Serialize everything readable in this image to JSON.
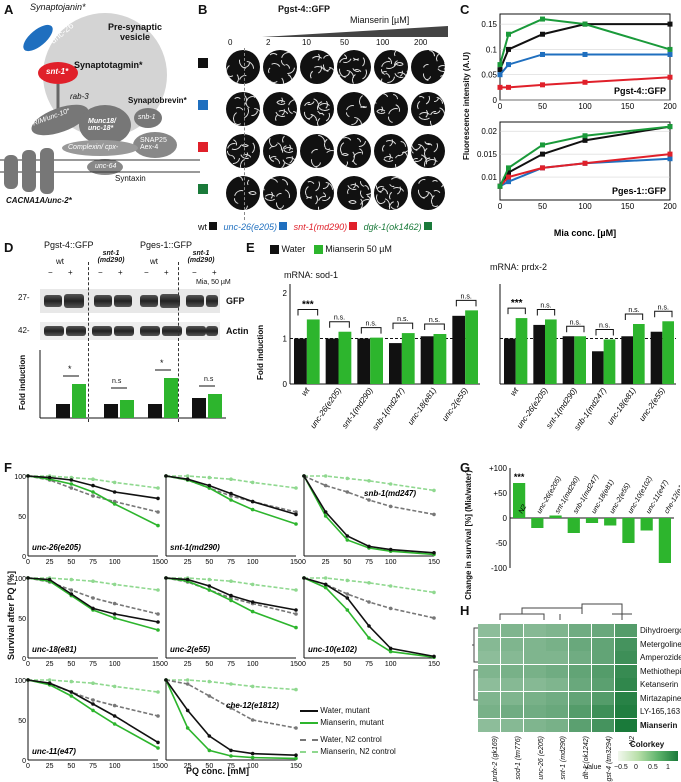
{
  "panels": {
    "A": {
      "label": "A",
      "vesicle": "Pre-synaptic vesicle",
      "synaptojanin": "Synaptojanin*",
      "unc26": "unc-26",
      "synaptotagmin": "Synaptotagmin*",
      "snt1": "snt-1*",
      "rab3": "rab-3",
      "synaptobrevin": "Synaptobrevin*",
      "rim": "RIM/unc-10*",
      "munc": "Munc18/ unc-18*",
      "snb1": "snb-1",
      "complexin": "Complexin/ cpx-",
      "snap25": "SNAP25 Aex-4",
      "syntaxin": "Syntaxin",
      "unc64": "unc-64",
      "cacna": "CACNA1A/unc-2*"
    },
    "B": {
      "label": "B",
      "title": "Pgst-4::GFP",
      "mianserin_label": "Mianserin [µM]",
      "doses": [
        "0",
        "2",
        "10",
        "50",
        "100",
        "200"
      ],
      "legend": [
        "wt",
        "unc-26(e205)",
        "snt-1(md290)",
        "dgk-1(ok1462)"
      ],
      "row_colors": [
        "#111111",
        "#1f6fbf",
        "#e0202a",
        "#1a7a3a"
      ]
    },
    "C": {
      "label": "C",
      "ylabel": "Fluorescence intensity (A.U)",
      "top_title": "Pgst-4::GFP",
      "bottom_title": "Pges-1::GFP",
      "xlabel": "Mia conc. [µM]"
    },
    "D": {
      "label": "D",
      "header1": "Pgst-4::GFP",
      "header2": "Pges-1::GFP",
      "wt": "wt",
      "mutant": "snt-1 (md290)",
      "mia": "Mia, 50 µM",
      "minus": "−",
      "plus": "+",
      "gfp": "GFP",
      "actin": "Actin",
      "mw_top": "27-",
      "mw_bottom": "42-",
      "ylabel": "Fold induction",
      "sig": [
        "*",
        "n.s",
        "*",
        "n.s"
      ]
    },
    "E": {
      "label": "E",
      "legend_water": "Water",
      "legend_mia": "Mianserin 50 µM",
      "title_left": "mRNA: sod-1",
      "title_right": "mRNA: prdx-2",
      "ylabel": "Fold induction",
      "strains": [
        "wt",
        "unc-26(e205)",
        "snt-1(md290)",
        "snb-1(md247)",
        "unc-18(e81)",
        "unc-2(e55)"
      ],
      "sig_left": [
        "***",
        "n.s.",
        "n.s.",
        "n.s.",
        "n.s.",
        "n.s."
      ],
      "sig_right": [
        "***",
        "n.s.",
        "n.s.",
        "n.s.",
        "n.s.",
        "n.s."
      ]
    },
    "F": {
      "label": "F",
      "ylabel": "Survival after PQ [%]",
      "xlabel": "PQ conc. [mM]",
      "subplots": [
        "unc-26(e205)",
        "snt-1(md290)",
        "snb-1(md247)",
        "unc-18(e81)",
        "unc-2(e55)",
        "unc-10(e102)",
        "unc-11(e47)",
        "che-12(e1812)"
      ],
      "legend": [
        "Water, mutant",
        "Mianserin, mutant",
        "Water, N2 control",
        "Mianserin, N2 control"
      ]
    },
    "G": {
      "label": "G",
      "ylabel": "Change in survival [%] (Mia/water)",
      "sig": "***"
    },
    "H": {
      "label": "H",
      "rows": [
        "Dihydroergot.",
        "Metergoline",
        "Amperozide",
        "Methiothepin",
        "Ketanserin",
        "Mirtazapine",
        "LY-165,163",
        "Mianserin"
      ],
      "cols": [
        "prdx-2 (gk169)",
        "sod-1 (tm776)",
        "unc-26 (e205)",
        "snt-1 (md290)",
        "dlt-1 (ok1242)",
        "gst-4 (tm3294)",
        "N2"
      ],
      "colorkey": "Colorkey",
      "value_label": "Value",
      "ticks": [
        "−0.5",
        "0",
        "0.5",
        "1"
      ]
    }
  },
  "chart_data": [
    {
      "type": "line",
      "title": "Pgst-4::GFP",
      "xlabel": "Mia conc. [µM]",
      "ylabel": "Fluorescence intensity (A.U)",
      "x": [
        0,
        10,
        50,
        100,
        200
      ],
      "xlim": [
        0,
        200
      ],
      "ylim": [
        0,
        0.17
      ],
      "series": [
        {
          "name": "wt",
          "color": "#111111",
          "values": [
            0.06,
            0.1,
            0.13,
            0.15,
            0.15
          ]
        },
        {
          "name": "unc-26(e205)",
          "color": "#1f6fbf",
          "values": [
            0.05,
            0.07,
            0.09,
            0.09,
            0.09
          ]
        },
        {
          "name": "snt-1(md290)",
          "color": "#e0202a",
          "values": [
            0.025,
            0.025,
            0.03,
            0.035,
            0.045
          ]
        },
        {
          "name": "dgk-1(ok1462)",
          "color": "#1a9a3a",
          "values": [
            0.07,
            0.13,
            0.16,
            0.15,
            0.1
          ]
        }
      ]
    },
    {
      "type": "line",
      "title": "Pges-1::GFP",
      "xlabel": "Mia conc. [µM]",
      "x": [
        0,
        10,
        50,
        100,
        200
      ],
      "xlim": [
        0,
        200
      ],
      "ylim": [
        0.005,
        0.022
      ],
      "series": [
        {
          "name": "wt",
          "color": "#111111",
          "values": [
            0.008,
            0.011,
            0.015,
            0.018,
            0.021
          ]
        },
        {
          "name": "unc-26(e205)",
          "color": "#1f6fbf",
          "values": [
            0.008,
            0.009,
            0.012,
            0.013,
            0.014
          ]
        },
        {
          "name": "snt-1(md290)",
          "color": "#e0202a",
          "values": [
            0.008,
            0.01,
            0.012,
            0.013,
            0.015
          ]
        },
        {
          "name": "dgk-1(ok1462)",
          "color": "#1a9a3a",
          "values": [
            0.008,
            0.012,
            0.017,
            0.019,
            0.021
          ]
        }
      ]
    },
    {
      "type": "bar",
      "ylabel": "Change in survival [%] (Mia/water)",
      "categories": [
        "N2",
        "unc-26(e205)",
        "snt-1(md290)",
        "snb-1(md247)",
        "unc-18(e81)",
        "unc-2(e55)",
        "unc-10(e102)",
        "unc-11(e47)",
        "che-12(e1812)"
      ],
      "values": [
        70,
        -20,
        5,
        -30,
        -10,
        -15,
        -50,
        -25,
        -90
      ],
      "ylim": [
        -100,
        100
      ]
    }
  ]
}
